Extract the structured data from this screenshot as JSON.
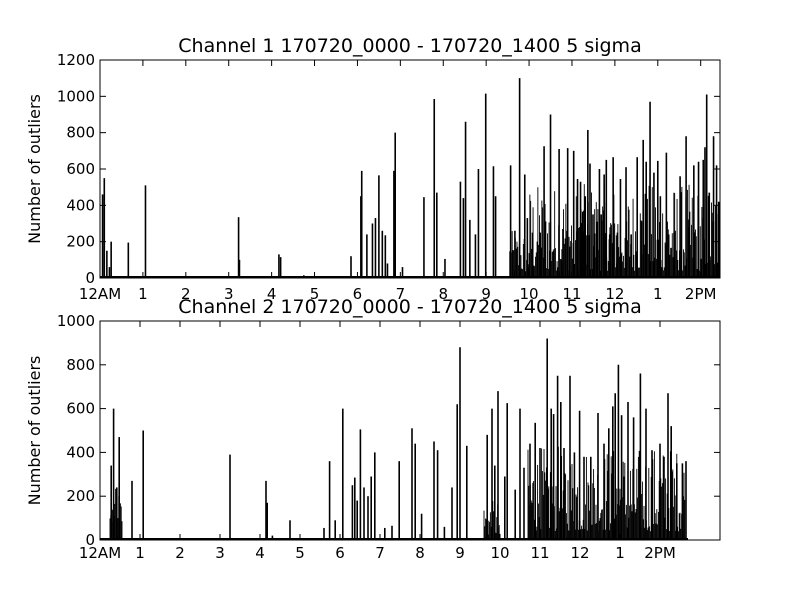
{
  "chart_data": [
    {
      "type": "bar",
      "title": "Channel 1 170720_0000 - 170720_1400 5 sigma",
      "xlabel": "",
      "ylabel": "Number of outliers",
      "ylim": [
        0,
        1200
      ],
      "xlim": [
        0,
        14.45
      ],
      "x_unit": "hours since 12AM",
      "yticks": [
        0,
        200,
        400,
        600,
        800,
        1000,
        1200
      ],
      "xticks": [
        {
          "x": 0,
          "label": "12AM"
        },
        {
          "x": 1,
          "label": "1"
        },
        {
          "x": 2,
          "label": "2"
        },
        {
          "x": 3,
          "label": "3"
        },
        {
          "x": 4,
          "label": "4"
        },
        {
          "x": 5,
          "label": "5"
        },
        {
          "x": 6,
          "label": "6"
        },
        {
          "x": 7,
          "label": "7"
        },
        {
          "x": 8,
          "label": "8"
        },
        {
          "x": 9,
          "label": "9"
        },
        {
          "x": 10,
          "label": "10"
        },
        {
          "x": 11,
          "label": "11"
        },
        {
          "x": 12,
          "label": "12"
        },
        {
          "x": 13,
          "label": "1"
        },
        {
          "x": 14,
          "label": "2PM"
        }
      ],
      "grid": false,
      "color": "#000000",
      "points": [
        [
          0.06,
          460
        ],
        [
          0.1,
          550
        ],
        [
          0.16,
          150
        ],
        [
          0.22,
          60
        ],
        [
          0.26,
          200
        ],
        [
          0.66,
          195
        ],
        [
          1.06,
          510
        ],
        [
          3.23,
          335
        ],
        [
          3.25,
          100
        ],
        [
          4.17,
          130
        ],
        [
          4.21,
          115
        ],
        [
          4.75,
          15
        ],
        [
          5.85,
          120
        ],
        [
          6.08,
          450
        ],
        [
          6.1,
          590
        ],
        [
          6.22,
          240
        ],
        [
          6.35,
          300
        ],
        [
          6.42,
          330
        ],
        [
          6.5,
          565
        ],
        [
          6.58,
          260
        ],
        [
          6.65,
          235
        ],
        [
          6.7,
          80
        ],
        [
          6.85,
          590
        ],
        [
          6.88,
          800
        ],
        [
          7.05,
          60
        ],
        [
          7.55,
          445
        ],
        [
          7.79,
          985
        ],
        [
          7.85,
          470
        ],
        [
          8.04,
          105
        ],
        [
          8.4,
          530
        ],
        [
          8.47,
          440
        ],
        [
          8.52,
          860
        ],
        [
          8.62,
          320
        ],
        [
          8.75,
          240
        ],
        [
          8.82,
          600
        ],
        [
          8.99,
          1015
        ],
        [
          9.17,
          615
        ],
        [
          9.22,
          450
        ],
        [
          9.57,
          620
        ],
        [
          9.67,
          260
        ],
        [
          9.78,
          1100
        ],
        [
          9.9,
          570
        ],
        [
          9.96,
          330
        ],
        [
          10.08,
          250
        ],
        [
          10.26,
          250
        ],
        [
          10.35,
          725
        ],
        [
          10.5,
          900
        ],
        [
          10.7,
          710
        ],
        [
          10.79,
          270
        ],
        [
          10.9,
          715
        ],
        [
          11.04,
          700
        ],
        [
          11.13,
          545
        ],
        [
          11.2,
          530
        ],
        [
          11.25,
          365
        ],
        [
          11.28,
          255
        ],
        [
          11.31,
          450
        ],
        [
          11.37,
          815
        ],
        [
          11.42,
          630
        ],
        [
          11.49,
          350
        ],
        [
          11.53,
          245
        ],
        [
          11.58,
          310
        ],
        [
          11.64,
          600
        ],
        [
          11.68,
          350
        ],
        [
          11.75,
          570
        ],
        [
          11.8,
          650
        ],
        [
          11.88,
          240
        ],
        [
          11.96,
          665
        ],
        [
          12.06,
          250
        ],
        [
          12.13,
          545
        ],
        [
          12.26,
          610
        ],
        [
          12.38,
          240
        ],
        [
          12.52,
          665
        ],
        [
          12.66,
          760
        ],
        [
          12.73,
          640
        ],
        [
          12.82,
          970
        ],
        [
          12.91,
          580
        ],
        [
          13.0,
          645
        ],
        [
          13.06,
          450
        ],
        [
          13.2,
          690
        ],
        [
          13.25,
          240
        ],
        [
          13.38,
          250
        ],
        [
          13.52,
          560
        ],
        [
          13.66,
          780
        ],
        [
          13.73,
          280
        ],
        [
          13.84,
          620
        ],
        [
          13.95,
          640
        ],
        [
          14.06,
          650
        ],
        [
          14.1,
          720
        ],
        [
          14.14,
          1010
        ],
        [
          14.2,
          470
        ],
        [
          14.3,
          780
        ],
        [
          14.37,
          620
        ],
        [
          14.42,
          420
        ]
      ],
      "dense_regions": [
        {
          "from": 9.55,
          "to": 10.0,
          "min": 30,
          "max": 260
        },
        {
          "from": 10.0,
          "to": 14.45,
          "min": 40,
          "max": 520
        }
      ]
    },
    {
      "type": "bar",
      "title": "Channel 2 170720_0000 - 170720_1400 5 sigma",
      "xlabel": "",
      "ylabel": "Number of outliers",
      "ylim": [
        0,
        1000
      ],
      "xlim": [
        0,
        15.5
      ],
      "x_unit": "hours since 12AM",
      "yticks": [
        0,
        200,
        400,
        600,
        800,
        1000
      ],
      "xticks": [
        {
          "x": 0,
          "label": "12AM"
        },
        {
          "x": 1,
          "label": "1"
        },
        {
          "x": 2,
          "label": "2"
        },
        {
          "x": 3,
          "label": "3"
        },
        {
          "x": 4,
          "label": "4"
        },
        {
          "x": 5,
          "label": "5"
        },
        {
          "x": 6,
          "label": "6"
        },
        {
          "x": 7,
          "label": "7"
        },
        {
          "x": 8,
          "label": "8"
        },
        {
          "x": 9,
          "label": "9"
        },
        {
          "x": 10,
          "label": "10"
        },
        {
          "x": 11,
          "label": "11"
        },
        {
          "x": 12,
          "label": "12"
        },
        {
          "x": 13,
          "label": "1"
        },
        {
          "x": 14,
          "label": "2PM"
        }
      ],
      "grid": false,
      "color": "#000000",
      "points": [
        [
          0.28,
          340
        ],
        [
          0.34,
          600
        ],
        [
          0.42,
          240
        ],
        [
          0.48,
          470
        ],
        [
          0.8,
          270
        ],
        [
          1.08,
          500
        ],
        [
          3.25,
          390
        ],
        [
          4.15,
          270
        ],
        [
          4.18,
          170
        ],
        [
          4.31,
          20
        ],
        [
          4.75,
          90
        ],
        [
          5.6,
          55
        ],
        [
          5.74,
          360
        ],
        [
          5.88,
          90
        ],
        [
          6.07,
          600
        ],
        [
          6.31,
          250
        ],
        [
          6.37,
          285
        ],
        [
          6.43,
          180
        ],
        [
          6.51,
          505
        ],
        [
          6.6,
          240
        ],
        [
          6.7,
          200
        ],
        [
          6.78,
          290
        ],
        [
          6.87,
          400
        ],
        [
          7.12,
          55
        ],
        [
          7.3,
          65
        ],
        [
          7.48,
          360
        ],
        [
          7.8,
          510
        ],
        [
          7.88,
          440
        ],
        [
          8.04,
          120
        ],
        [
          8.35,
          450
        ],
        [
          8.44,
          410
        ],
        [
          8.61,
          60
        ],
        [
          8.8,
          240
        ],
        [
          8.93,
          620
        ],
        [
          9.0,
          880
        ],
        [
          9.17,
          430
        ],
        [
          9.68,
          480
        ],
        [
          9.8,
          600
        ],
        [
          9.87,
          340
        ],
        [
          9.95,
          680
        ],
        [
          10.12,
          290
        ],
        [
          10.18,
          625
        ],
        [
          10.38,
          230
        ],
        [
          10.5,
          600
        ],
        [
          10.6,
          330
        ],
        [
          10.75,
          440
        ],
        [
          10.88,
          535
        ],
        [
          11.0,
          420
        ],
        [
          11.18,
          920
        ],
        [
          11.28,
          600
        ],
        [
          11.34,
          575
        ],
        [
          11.44,
          750
        ],
        [
          11.52,
          630
        ],
        [
          11.6,
          420
        ],
        [
          11.75,
          750
        ],
        [
          11.86,
          400
        ],
        [
          11.99,
          590
        ],
        [
          12.1,
          380
        ],
        [
          12.27,
          380
        ],
        [
          12.45,
          580
        ],
        [
          12.6,
          440
        ],
        [
          12.72,
          510
        ],
        [
          12.82,
          610
        ],
        [
          12.88,
          670
        ],
        [
          12.96,
          800
        ],
        [
          13.04,
          570
        ],
        [
          13.2,
          630
        ],
        [
          13.34,
          560
        ],
        [
          13.51,
          760
        ],
        [
          13.65,
          600
        ],
        [
          13.8,
          410
        ],
        [
          14.0,
          440
        ],
        [
          14.1,
          380
        ],
        [
          14.2,
          670
        ],
        [
          14.28,
          520
        ],
        [
          14.42,
          350
        ],
        [
          14.56,
          350
        ],
        [
          14.65,
          360
        ]
      ],
      "dense_regions": [
        {
          "from": 0.25,
          "to": 0.55,
          "min": 80,
          "max": 260
        },
        {
          "from": 9.6,
          "to": 10.0,
          "min": 20,
          "max": 180
        },
        {
          "from": 10.7,
          "to": 14.62,
          "min": 40,
          "max": 430
        }
      ]
    }
  ]
}
